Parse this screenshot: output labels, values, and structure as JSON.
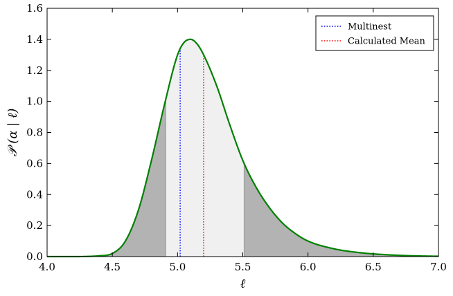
{
  "chart_data": {
    "type": "line",
    "xlabel": "ℓ",
    "ylabel": "𝒫 (α | ℓ)",
    "xlim": [
      4.0,
      7.0
    ],
    "ylim": [
      0.0,
      1.6
    ],
    "x_ticks": [
      "4.0",
      "4.5",
      "5.0",
      "5.5",
      "6.0",
      "6.5",
      "7.0"
    ],
    "y_ticks": [
      "0.0",
      "0.2",
      "0.4",
      "0.6",
      "0.8",
      "1.0",
      "1.2",
      "1.4",
      "1.6"
    ],
    "grid": false,
    "legend_position": "top-right",
    "curve": {
      "color": "#008000",
      "x": [
        4.0,
        4.2,
        4.4,
        4.5,
        4.6,
        4.7,
        4.8,
        4.9,
        5.0,
        5.05,
        5.1,
        5.15,
        5.2,
        5.3,
        5.4,
        5.5,
        5.6,
        5.7,
        5.8,
        5.9,
        6.0,
        6.2,
        6.4,
        6.6,
        6.8,
        7.0
      ],
      "y": [
        0.0,
        0.0,
        0.005,
        0.02,
        0.1,
        0.3,
        0.62,
        0.98,
        1.3,
        1.38,
        1.4,
        1.37,
        1.3,
        1.1,
        0.85,
        0.62,
        0.45,
        0.32,
        0.22,
        0.15,
        0.1,
        0.05,
        0.025,
        0.012,
        0.005,
        0.002
      ]
    },
    "credible_interval": {
      "lower": 4.91,
      "upper": 5.51,
      "inner_color": "#f0f0f0",
      "tail_color": "#b3b3b3"
    },
    "markers": [
      {
        "name": "Multinest",
        "x": 5.02,
        "color": "#0000ff"
      },
      {
        "name": "Calculated Mean",
        "x": 5.2,
        "color": "#ff0000"
      }
    ]
  }
}
